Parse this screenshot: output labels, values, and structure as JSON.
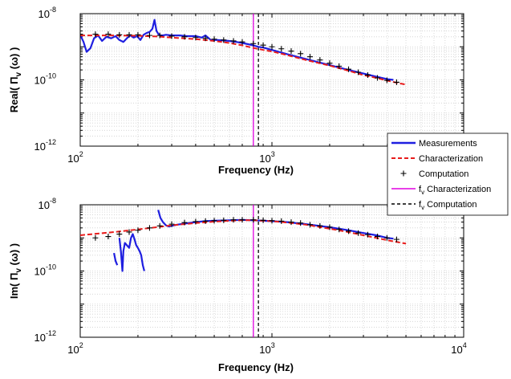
{
  "chart_data": [
    {
      "type": "line",
      "title": "",
      "xlabel": "Frequency (Hz)",
      "ylabel": "Real( Π",
      "ylabel_sub": "v",
      "ylabel_suffix": " (ω) )",
      "x_scale": "log",
      "y_scale": "log",
      "xlim": [
        100,
        10000
      ],
      "ylim": [
        1e-12,
        1e-08
      ],
      "x_ticks": [
        {
          "base": "10",
          "exp": "2"
        },
        {
          "base": "10",
          "exp": "3"
        },
        {
          "base": "10",
          "exp": "4"
        }
      ],
      "x_tick_labels_shown": [
        true,
        true,
        false
      ],
      "y_ticks": [
        {
          "base": "10",
          "exp": "-8"
        },
        {
          "base": "10",
          "exp": "-10"
        },
        {
          "base": "10",
          "exp": "-12"
        }
      ],
      "grid": true,
      "series": [
        {
          "name": "Measurements",
          "style": "solid-line",
          "color": "#1f1fe0",
          "x": [
            100,
            104,
            108,
            113,
            118,
            124,
            130,
            137,
            145,
            153,
            160,
            168,
            175,
            182,
            190,
            198,
            206,
            214,
            222,
            230,
            238,
            244,
            250,
            256,
            262,
            270,
            280,
            300,
            330,
            360,
            400,
            430,
            450,
            480,
            520,
            560,
            600,
            650,
            700,
            750,
            800,
            850,
            900,
            1000,
            1200,
            1500,
            2000,
            2500,
            3000,
            3500,
            4000,
            4300
          ],
          "y": [
            2.3e-09,
            1.4e-09,
            7e-10,
            9e-10,
            1.8e-09,
            2.2e-09,
            1.5e-09,
            2e-09,
            1.8e-09,
            2.1e-09,
            1.6e-09,
            1.4e-09,
            1.8e-09,
            2.2e-09,
            1.9e-09,
            2.1e-09,
            1.6e-09,
            2.3e-09,
            2.6e-09,
            2.8e-09,
            3.5e-09,
            6.5e-09,
            3e-09,
            2.4e-09,
            2.2e-09,
            2.2e-09,
            2.3e-09,
            2.2e-09,
            2.2e-09,
            2.1e-09,
            2.1e-09,
            1.9e-09,
            2.2e-09,
            1.6e-09,
            1.6e-09,
            1.55e-09,
            1.5e-09,
            1.4e-09,
            1.3e-09,
            1.2e-09,
            1.1e-09,
            1e-09,
            9.5e-10,
            8e-10,
            6e-10,
            4.3e-10,
            2.8e-10,
            2e-10,
            1.55e-10,
            1.25e-10,
            1.05e-10,
            1e-10
          ]
        },
        {
          "name": "Characterization",
          "style": "dashed-line",
          "color": "#e81c1c",
          "x": [
            100,
            150,
            200,
            250,
            300,
            400,
            500,
            600,
            700,
            800,
            900,
            1000,
            1200,
            1500,
            2000,
            2500,
            3000,
            3500,
            4000,
            4500,
            5000
          ],
          "y": [
            2.2e-09,
            2.2e-09,
            2.15e-09,
            2.05e-09,
            1.9e-09,
            1.7e-09,
            1.5e-09,
            1.3e-09,
            1.1e-09,
            9.2e-10,
            8e-10,
            7.2e-10,
            5.6e-10,
            4e-10,
            2.7e-10,
            1.9e-10,
            1.4e-10,
            1.15e-10,
            9.5e-11,
            8.2e-11,
            7.2e-11
          ]
        },
        {
          "name": "Computation",
          "style": "plus-markers",
          "color": "#000000",
          "x": [
            100,
            120,
            140,
            160,
            180,
            200,
            230,
            260,
            300,
            350,
            400,
            450,
            500,
            560,
            630,
            700,
            800,
            900,
            1000,
            1120,
            1260,
            1410,
            1580,
            1780,
            2000,
            2240,
            2510,
            2820,
            3160,
            3550,
            3980,
            4470
          ],
          "y": [
            2.4e-09,
            2.4e-09,
            2.4e-09,
            2.3e-09,
            2.3e-09,
            2.3e-09,
            2.2e-09,
            2.2e-09,
            2.1e-09,
            2e-09,
            1.9e-09,
            1.8e-09,
            1.7e-09,
            1.6e-09,
            1.5e-09,
            1.4e-09,
            1.25e-09,
            1.12e-09,
            1e-09,
            8.7e-10,
            7.4e-10,
            6.2e-10,
            5e-10,
            4e-10,
            3.2e-10,
            2.6e-10,
            2.1e-10,
            1.7e-10,
            1.4e-10,
            1.15e-10,
            9.7e-11,
            8.5e-11
          ]
        }
      ],
      "vlines": [
        {
          "name": "f_v Characterization",
          "x": 800,
          "color": "#e000e0",
          "style": "solid"
        },
        {
          "name": "f_v Computation",
          "x": 850,
          "color": "#000000",
          "style": "dashed"
        }
      ]
    },
    {
      "type": "line",
      "title": "",
      "xlabel": "Frequency (Hz)",
      "ylabel": "Im( Π",
      "ylabel_sub": "v",
      "ylabel_suffix": " (ω) )",
      "x_scale": "log",
      "y_scale": "log",
      "xlim": [
        100,
        10000
      ],
      "ylim": [
        1e-12,
        1e-08
      ],
      "x_ticks": [
        {
          "base": "10",
          "exp": "2"
        },
        {
          "base": "10",
          "exp": "3"
        },
        {
          "base": "10",
          "exp": "4"
        }
      ],
      "x_tick_labels_shown": [
        true,
        true,
        true
      ],
      "y_ticks": [
        {
          "base": "10",
          "exp": "-8"
        },
        {
          "base": "10",
          "exp": "-10"
        },
        {
          "base": "10",
          "exp": "-12"
        }
      ],
      "grid": true,
      "series": [
        {
          "name": "Measurements",
          "style": "solid-line",
          "color": "#1f1fe0",
          "segments": [
            {
              "x": [
                150,
                153,
                156
              ],
              "y": [
                3.5e-10,
                2e-10,
                1.5e-10
              ]
            },
            {
              "x": [
                160,
                163,
                166,
                168,
                171,
                175,
                180,
                184,
                188,
                192,
                196,
                200,
                204,
                208,
                212,
                216
              ],
              "y": [
                1e-09,
                4e-10,
                1e-10,
                4e-10,
                7e-10,
                6e-10,
                5e-10,
                1e-09,
                1.3e-09,
                9e-10,
                6e-10,
                5e-10,
                4e-10,
                3e-10,
                1.5e-10,
                1e-10
              ]
            },
            {
              "x": [
                255,
                262,
                270,
                280,
                290,
                300,
                320,
                350,
                400,
                450,
                500,
                600,
                700,
                800,
                900,
                1000,
                1200,
                1500,
                2000,
                2500,
                3000,
                3500,
                4000,
                4300
              ],
              "y": [
                7e-09,
                4e-09,
                3e-09,
                2.4e-09,
                2.2e-09,
                2.3e-09,
                2.5e-09,
                2.7e-09,
                3e-09,
                3.2e-09,
                3.3e-09,
                3.4e-09,
                3.5e-09,
                3.4e-09,
                3.3e-09,
                3.2e-09,
                3e-09,
                2.6e-09,
                2.1e-09,
                1.7e-09,
                1.4e-09,
                1.2e-09,
                1e-09,
                9.5e-10
              ]
            }
          ]
        },
        {
          "name": "Characterization",
          "style": "dashed-line",
          "color": "#e81c1c",
          "x": [
            100,
            150,
            200,
            250,
            300,
            400,
            500,
            600,
            700,
            800,
            900,
            1000,
            1200,
            1500,
            2000,
            2500,
            3000,
            3500,
            4000,
            4500,
            5000
          ],
          "y": [
            1.2e-09,
            1.5e-09,
            1.8e-09,
            2.1e-09,
            2.4e-09,
            2.8e-09,
            3.1e-09,
            3.3e-09,
            3.4e-09,
            3.4e-09,
            3.3e-09,
            3.2e-09,
            2.9e-09,
            2.5e-09,
            1.9e-09,
            1.5e-09,
            1.2e-09,
            1e-09,
            8.5e-10,
            7.5e-10,
            6.7e-10
          ]
        },
        {
          "name": "Computation",
          "style": "plus-markers",
          "color": "#000000",
          "x": [
            100,
            120,
            140,
            160,
            180,
            200,
            230,
            260,
            300,
            350,
            400,
            450,
            500,
            560,
            630,
            700,
            800,
            900,
            1000,
            1120,
            1260,
            1410,
            1580,
            1780,
            2000,
            2240,
            2510,
            2820,
            3160,
            3550,
            3980,
            4470
          ],
          "y": [
            9e-10,
            1e-09,
            1.1e-09,
            1.3e-09,
            1.5e-09,
            1.7e-09,
            2e-09,
            2.3e-09,
            2.6e-09,
            2.9e-09,
            3.1e-09,
            3.2e-09,
            3.3e-09,
            3.4e-09,
            3.5e-09,
            3.5e-09,
            3.5e-09,
            3.4e-09,
            3.3e-09,
            3.2e-09,
            3e-09,
            2.8e-09,
            2.5e-09,
            2.3e-09,
            2.1e-09,
            1.8e-09,
            1.6e-09,
            1.4e-09,
            1.25e-09,
            1.1e-09,
            1e-09,
            9e-10
          ]
        }
      ],
      "vlines": [
        {
          "name": "f_v Characterization",
          "x": 800,
          "color": "#e000e0",
          "style": "solid"
        },
        {
          "name": "f_v Computation",
          "x": 850,
          "color": "#000000",
          "style": "dashed"
        }
      ]
    }
  ],
  "legend": {
    "placement": "right-middle",
    "entries": [
      {
        "label": "Measurements",
        "color": "#1f1fe0",
        "style": "solid-line"
      },
      {
        "label": "Characterization",
        "color": "#e81c1c",
        "style": "dashed-line"
      },
      {
        "label": "Computation",
        "color": "#000000",
        "style": "plus-marker"
      },
      {
        "label": " Characterization",
        "prefix": "f",
        "sub": "v",
        "color": "#e000e0",
        "style": "solid-line"
      },
      {
        "label": " Computation",
        "prefix": "f",
        "sub": "v",
        "color": "#000000",
        "style": "dashed-line"
      }
    ]
  }
}
